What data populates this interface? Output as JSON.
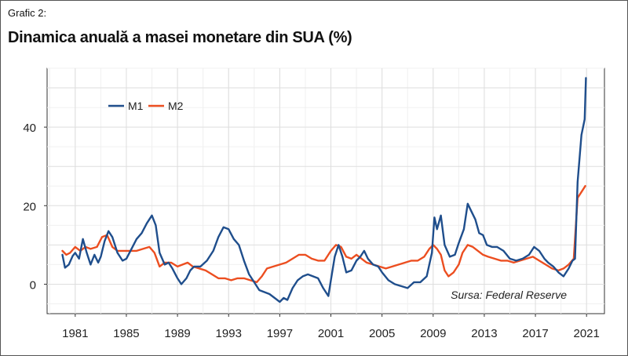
{
  "header": {
    "kicker": "Grafic 2:",
    "title": "Dinamica anuală a masei monetare din SUA (%)"
  },
  "chart_data": {
    "type": "line",
    "title": "Dinamica anuală a masei monetare din SUA (%)",
    "xlabel": "",
    "ylabel": "",
    "xlim": [
      1978.8,
      2022.4
    ],
    "ylim": [
      -7.5,
      55
    ],
    "x_ticks": [
      1981,
      1985,
      1989,
      1993,
      1997,
      2001,
      2005,
      2009,
      2013,
      2017,
      2021
    ],
    "y_ticks": [
      0,
      20,
      40
    ],
    "grid": true,
    "legend_position": "top-left",
    "source": "Sursa: Federal Reserve",
    "series": [
      {
        "name": "M1",
        "color": "#1f4e8c",
        "points": [
          [
            1980.0,
            7.5
          ],
          [
            1980.2,
            4.2
          ],
          [
            1980.5,
            5.0
          ],
          [
            1980.8,
            7.2
          ],
          [
            1981.0,
            8.0
          ],
          [
            1981.3,
            6.5
          ],
          [
            1981.6,
            11.5
          ],
          [
            1981.9,
            8.0
          ],
          [
            1982.2,
            5.0
          ],
          [
            1982.5,
            7.5
          ],
          [
            1982.8,
            5.5
          ],
          [
            1983.0,
            7.0
          ],
          [
            1983.3,
            11.0
          ],
          [
            1983.6,
            13.5
          ],
          [
            1983.9,
            12.0
          ],
          [
            1984.3,
            8.0
          ],
          [
            1984.7,
            6.0
          ],
          [
            1985.0,
            6.5
          ],
          [
            1985.4,
            9.0
          ],
          [
            1985.8,
            11.5
          ],
          [
            1986.2,
            13.0
          ],
          [
            1986.6,
            15.5
          ],
          [
            1987.0,
            17.5
          ],
          [
            1987.3,
            15.0
          ],
          [
            1987.6,
            8.0
          ],
          [
            1988.0,
            5.0
          ],
          [
            1988.3,
            5.5
          ],
          [
            1988.6,
            4.0
          ],
          [
            1989.0,
            1.5
          ],
          [
            1989.3,
            0.0
          ],
          [
            1989.7,
            1.5
          ],
          [
            1990.0,
            3.5
          ],
          [
            1990.3,
            4.5
          ],
          [
            1990.8,
            4.5
          ],
          [
            1991.3,
            6.0
          ],
          [
            1991.8,
            8.5
          ],
          [
            1992.2,
            12.0
          ],
          [
            1992.6,
            14.5
          ],
          [
            1993.0,
            14.0
          ],
          [
            1993.4,
            11.5
          ],
          [
            1993.8,
            10.0
          ],
          [
            1994.2,
            6.0
          ],
          [
            1994.6,
            2.5
          ],
          [
            1995.0,
            0.5
          ],
          [
            1995.4,
            -1.5
          ],
          [
            1995.8,
            -2.0
          ],
          [
            1996.2,
            -2.5
          ],
          [
            1996.6,
            -3.5
          ],
          [
            1997.0,
            -4.5
          ],
          [
            1997.3,
            -3.5
          ],
          [
            1997.6,
            -4.0
          ],
          [
            1998.0,
            -1.0
          ],
          [
            1998.4,
            1.0
          ],
          [
            1998.8,
            2.0
          ],
          [
            1999.2,
            2.5
          ],
          [
            1999.6,
            2.0
          ],
          [
            2000.0,
            1.5
          ],
          [
            2000.4,
            -1.0
          ],
          [
            2000.8,
            -3.0
          ],
          [
            2001.0,
            1.0
          ],
          [
            2001.3,
            7.0
          ],
          [
            2001.6,
            10.0
          ],
          [
            2001.9,
            7.0
          ],
          [
            2002.2,
            3.0
          ],
          [
            2002.6,
            3.5
          ],
          [
            2003.0,
            6.0
          ],
          [
            2003.3,
            7.0
          ],
          [
            2003.6,
            8.5
          ],
          [
            2003.9,
            6.5
          ],
          [
            2004.3,
            5.0
          ],
          [
            2004.7,
            4.5
          ],
          [
            2005.0,
            3.0
          ],
          [
            2005.5,
            1.0
          ],
          [
            2006.0,
            0.0
          ],
          [
            2006.5,
            -0.5
          ],
          [
            2007.0,
            -1.0
          ],
          [
            2007.5,
            0.5
          ],
          [
            2008.0,
            0.5
          ],
          [
            2008.5,
            2.0
          ],
          [
            2008.9,
            8.0
          ],
          [
            2009.1,
            17.0
          ],
          [
            2009.3,
            14.0
          ],
          [
            2009.6,
            17.5
          ],
          [
            2009.9,
            10.0
          ],
          [
            2010.3,
            7.0
          ],
          [
            2010.7,
            7.5
          ],
          [
            2011.0,
            10.5
          ],
          [
            2011.4,
            14.0
          ],
          [
            2011.7,
            20.5
          ],
          [
            2012.0,
            18.5
          ],
          [
            2012.3,
            16.5
          ],
          [
            2012.6,
            13.0
          ],
          [
            2012.9,
            12.5
          ],
          [
            2013.2,
            10.0
          ],
          [
            2013.6,
            9.5
          ],
          [
            2014.0,
            9.5
          ],
          [
            2014.5,
            8.5
          ],
          [
            2015.0,
            6.5
          ],
          [
            2015.5,
            6.0
          ],
          [
            2016.0,
            6.5
          ],
          [
            2016.5,
            7.5
          ],
          [
            2016.9,
            9.5
          ],
          [
            2017.3,
            8.5
          ],
          [
            2017.7,
            6.5
          ],
          [
            2018.0,
            5.5
          ],
          [
            2018.4,
            4.5
          ],
          [
            2018.8,
            3.0
          ],
          [
            2019.2,
            2.0
          ],
          [
            2019.6,
            4.0
          ],
          [
            2019.9,
            6.0
          ],
          [
            2020.1,
            6.5
          ],
          [
            2020.3,
            26.0
          ],
          [
            2020.6,
            38.0
          ],
          [
            2020.85,
            42.0
          ],
          [
            2020.95,
            52.5
          ]
        ]
      },
      {
        "name": "M2",
        "color": "#ec4e20",
        "points": [
          [
            1980.0,
            8.5
          ],
          [
            1980.3,
            7.5
          ],
          [
            1980.6,
            8.0
          ],
          [
            1981.0,
            9.5
          ],
          [
            1981.4,
            8.5
          ],
          [
            1981.8,
            9.5
          ],
          [
            1982.2,
            9.0
          ],
          [
            1982.7,
            9.5
          ],
          [
            1983.1,
            12.0
          ],
          [
            1983.5,
            12.5
          ],
          [
            1983.9,
            9.5
          ],
          [
            1984.3,
            8.5
          ],
          [
            1984.8,
            8.5
          ],
          [
            1985.3,
            8.5
          ],
          [
            1985.8,
            8.5
          ],
          [
            1986.3,
            9.0
          ],
          [
            1986.8,
            9.5
          ],
          [
            1987.2,
            8.0
          ],
          [
            1987.6,
            4.5
          ],
          [
            1988.0,
            5.5
          ],
          [
            1988.5,
            5.5
          ],
          [
            1989.0,
            4.5
          ],
          [
            1989.4,
            5.0
          ],
          [
            1989.8,
            5.5
          ],
          [
            1990.2,
            4.5
          ],
          [
            1990.7,
            4.0
          ],
          [
            1991.2,
            3.5
          ],
          [
            1991.7,
            2.5
          ],
          [
            1992.2,
            1.5
          ],
          [
            1992.7,
            1.5
          ],
          [
            1993.2,
            1.0
          ],
          [
            1993.7,
            1.5
          ],
          [
            1994.2,
            1.5
          ],
          [
            1994.7,
            1.0
          ],
          [
            1995.2,
            0.5
          ],
          [
            1995.6,
            2.0
          ],
          [
            1996.0,
            4.0
          ],
          [
            1996.5,
            4.5
          ],
          [
            1997.0,
            5.0
          ],
          [
            1997.5,
            5.5
          ],
          [
            1998.0,
            6.5
          ],
          [
            1998.5,
            7.5
          ],
          [
            1999.0,
            7.5
          ],
          [
            1999.5,
            6.5
          ],
          [
            2000.0,
            6.0
          ],
          [
            2000.5,
            6.0
          ],
          [
            2001.0,
            8.5
          ],
          [
            2001.4,
            10.0
          ],
          [
            2001.8,
            9.5
          ],
          [
            2002.2,
            7.0
          ],
          [
            2002.6,
            6.5
          ],
          [
            2003.0,
            7.5
          ],
          [
            2003.4,
            6.5
          ],
          [
            2003.8,
            5.5
          ],
          [
            2004.3,
            5.0
          ],
          [
            2004.8,
            4.5
          ],
          [
            2005.3,
            4.0
          ],
          [
            2005.8,
            4.5
          ],
          [
            2006.3,
            5.0
          ],
          [
            2006.8,
            5.5
          ],
          [
            2007.3,
            6.0
          ],
          [
            2007.8,
            6.0
          ],
          [
            2008.3,
            7.0
          ],
          [
            2008.7,
            9.0
          ],
          [
            2009.0,
            10.0
          ],
          [
            2009.3,
            9.0
          ],
          [
            2009.6,
            7.5
          ],
          [
            2009.9,
            3.5
          ],
          [
            2010.2,
            2.0
          ],
          [
            2010.6,
            3.0
          ],
          [
            2011.0,
            5.0
          ],
          [
            2011.3,
            8.0
          ],
          [
            2011.7,
            10.0
          ],
          [
            2012.1,
            9.5
          ],
          [
            2012.5,
            8.5
          ],
          [
            2012.9,
            7.5
          ],
          [
            2013.3,
            7.0
          ],
          [
            2013.8,
            6.5
          ],
          [
            2014.3,
            6.0
          ],
          [
            2014.8,
            6.0
          ],
          [
            2015.3,
            5.5
          ],
          [
            2015.8,
            6.0
          ],
          [
            2016.3,
            6.5
          ],
          [
            2016.8,
            7.0
          ],
          [
            2017.3,
            6.0
          ],
          [
            2017.8,
            5.0
          ],
          [
            2018.3,
            4.0
          ],
          [
            2018.8,
            3.5
          ],
          [
            2019.2,
            4.0
          ],
          [
            2019.6,
            5.0
          ],
          [
            2020.0,
            6.5
          ],
          [
            2020.3,
            22.0
          ],
          [
            2020.6,
            23.5
          ],
          [
            2020.9,
            25.0
          ]
        ]
      }
    ]
  }
}
